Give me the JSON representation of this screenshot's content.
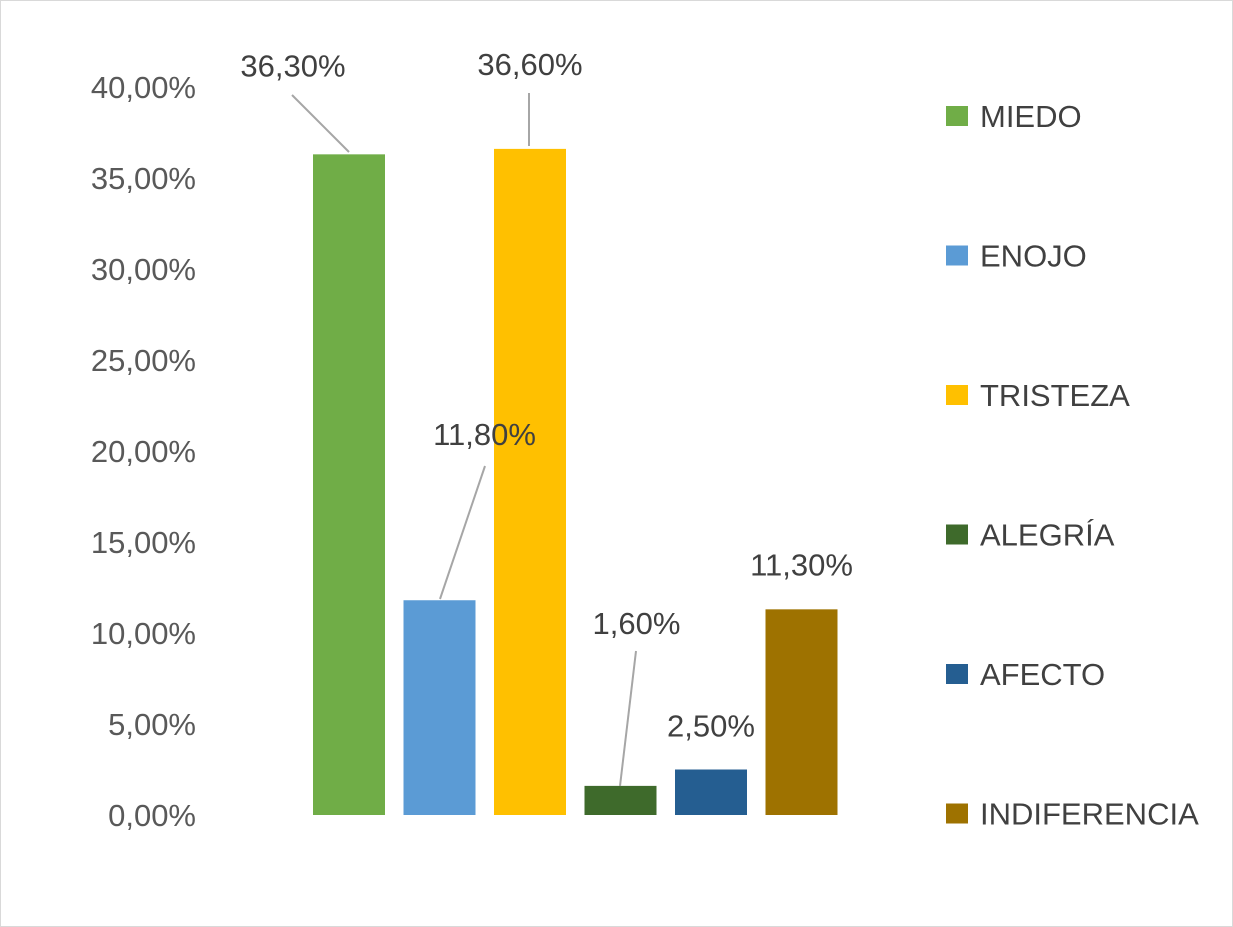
{
  "chart_data": {
    "type": "bar",
    "title": "",
    "xlabel": "",
    "ylabel": "",
    "categories": [
      "MIEDO",
      "ENOJO",
      "TRISTEZA",
      "ALEGRÍA",
      "AFECTO",
      "INDIFERENCIA"
    ],
    "values": [
      36.3,
      11.8,
      36.6,
      1.6,
      2.5,
      11.3
    ],
    "data_labels": [
      "36,30%",
      "11,80%",
      "36,60%",
      "1,60%",
      "2,50%",
      "11,30%"
    ],
    "colors": [
      "#70AD47",
      "#5B9BD5",
      "#FFC000",
      "#3E6A2B",
      "#255E91",
      "#9E7200"
    ],
    "ylim": [
      0,
      40
    ],
    "yticks": [
      0,
      5,
      10,
      15,
      20,
      25,
      30,
      35,
      40
    ],
    "ytick_labels": [
      "0,00%",
      "5,00%",
      "10,00%",
      "15,00%",
      "20,00%",
      "25,00%",
      "30,00%",
      "35,00%",
      "40,00%"
    ],
    "grid": false,
    "legend_position": "right",
    "legend": [
      "MIEDO",
      "ENOJO",
      "TRISTEZA",
      "ALEGRÍA",
      "AFECTO",
      "INDIFERENCIA"
    ]
  }
}
